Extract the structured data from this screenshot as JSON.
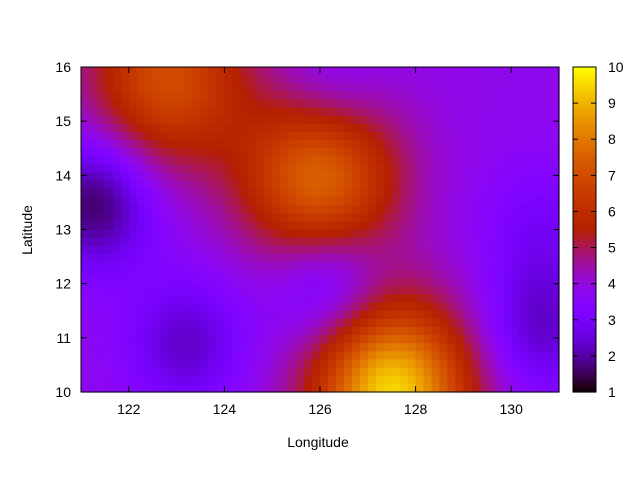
{
  "chart_data": {
    "type": "heatmap",
    "title": "",
    "xlabel": "Longitude",
    "ylabel": "Latitude",
    "xlim": [
      121,
      131
    ],
    "ylim": [
      10,
      16
    ],
    "xticks": [
      "122",
      "124",
      "126",
      "128",
      "130"
    ],
    "yticks": [
      "10",
      "11",
      "12",
      "13",
      "14",
      "15",
      "16"
    ],
    "colorbar": {
      "range": [
        1,
        10
      ],
      "ticks": [
        "1",
        "2",
        "3",
        "4",
        "5",
        "6",
        "7",
        "8",
        "9",
        "10"
      ],
      "palette": "gnuplot-pm3d (black-purple-red-orange-yellow)"
    },
    "features": [
      {
        "kind": "high",
        "lon": 127.5,
        "lat": 10.0,
        "value": 9.5
      },
      {
        "kind": "high",
        "lon": 126.0,
        "lat": 14.0,
        "value": 7.8
      },
      {
        "kind": "high",
        "lon": 122.8,
        "lat": 15.8,
        "value": 7.0
      },
      {
        "kind": "low",
        "lon": 121.3,
        "lat": 13.5,
        "value": 1.5
      },
      {
        "kind": "low",
        "lon": 123.2,
        "lat": 10.9,
        "value": 2.3
      },
      {
        "kind": "low",
        "lon": 126.2,
        "lat": 12.0,
        "value": 2.2
      },
      {
        "kind": "low",
        "lon": 126.2,
        "lat": 15.4,
        "value": 2.8
      },
      {
        "kind": "low",
        "lon": 130.6,
        "lat": 11.2,
        "value": 2.3
      },
      {
        "kind": "low",
        "lon": 130.6,
        "lat": 13.0,
        "value": 3.0
      }
    ],
    "background_value": 3.8,
    "grid": false,
    "legend": "none"
  }
}
